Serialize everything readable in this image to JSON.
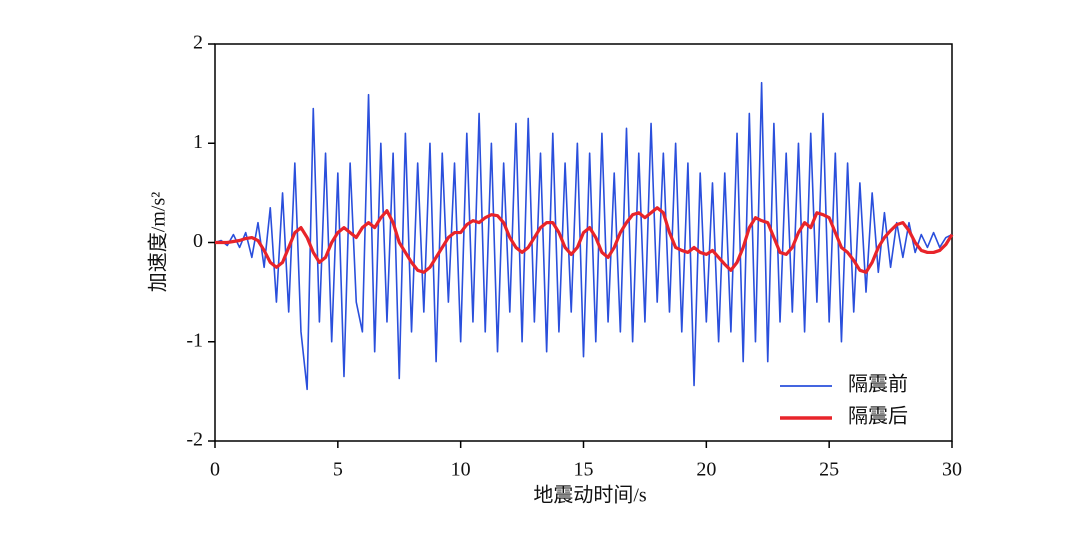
{
  "chart_data": {
    "type": "line",
    "xlabel": "地震动时间/s",
    "ylabel": "加速度/m/s²",
    "xlim": [
      0,
      30
    ],
    "xticks": [
      0,
      5,
      10,
      15,
      20,
      25,
      30
    ],
    "ylim": [
      -2,
      2
    ],
    "yticks": [
      -2,
      -1,
      0,
      1,
      2
    ],
    "legend": "lower right",
    "x": [
      0,
      0.25,
      0.5,
      0.75,
      1,
      1.25,
      1.5,
      1.75,
      2,
      2.25,
      2.5,
      2.75,
      3,
      3.25,
      3.5,
      3.75,
      4,
      4.25,
      4.5,
      4.75,
      5,
      5.25,
      5.5,
      5.75,
      6,
      6.25,
      6.5,
      6.75,
      7,
      7.25,
      7.5,
      7.75,
      8,
      8.25,
      8.5,
      8.75,
      9,
      9.25,
      9.5,
      9.75,
      10,
      10.25,
      10.5,
      10.75,
      11,
      11.25,
      11.5,
      11.75,
      12,
      12.25,
      12.5,
      12.75,
      13,
      13.25,
      13.5,
      13.75,
      14,
      14.25,
      14.5,
      14.75,
      15,
      15.25,
      15.5,
      15.75,
      16,
      16.25,
      16.5,
      16.75,
      17,
      17.25,
      17.5,
      17.75,
      18,
      18.25,
      18.5,
      18.75,
      19,
      19.25,
      19.5,
      19.75,
      20,
      20.25,
      20.5,
      20.75,
      21,
      21.25,
      21.5,
      21.75,
      22,
      22.25,
      22.5,
      22.75,
      23,
      23.25,
      23.5,
      23.75,
      24,
      24.25,
      24.5,
      24.75,
      25,
      25.25,
      25.5,
      25.75,
      26,
      26.25,
      26.5,
      26.75,
      27,
      27.25,
      27.5,
      27.75,
      28,
      28.25,
      28.5,
      28.75,
      29,
      29.25,
      29.5,
      29.75,
      30
    ],
    "series": [
      {
        "name": "隔震前",
        "color": "#2a4fdc",
        "values": [
          0,
          0.02,
          -0.03,
          0.08,
          -0.05,
          0.1,
          -0.15,
          0.2,
          -0.25,
          0.35,
          -0.6,
          0.5,
          -0.7,
          0.8,
          -0.9,
          -1.48,
          1.35,
          -0.8,
          0.9,
          -1.0,
          0.7,
          -1.35,
          0.8,
          -0.6,
          -0.9,
          1.49,
          -1.1,
          1.0,
          -0.8,
          0.9,
          -1.37,
          1.1,
          -0.9,
          0.8,
          -0.7,
          1.0,
          -1.2,
          0.9,
          -0.6,
          0.8,
          -1.0,
          1.1,
          -0.8,
          1.3,
          -0.9,
          1.0,
          -1.1,
          0.8,
          -0.7,
          1.2,
          -1.0,
          1.25,
          -0.8,
          0.9,
          -1.1,
          1.1,
          -0.9,
          0.8,
          -0.7,
          1.0,
          -1.15,
          0.9,
          -1.0,
          1.1,
          -0.8,
          0.7,
          -0.9,
          1.15,
          -1.0,
          0.9,
          -0.8,
          1.2,
          -0.6,
          0.9,
          -0.7,
          1.0,
          -0.9,
          0.8,
          -1.44,
          0.7,
          -0.8,
          0.6,
          -1.0,
          0.7,
          -0.9,
          1.1,
          -1.2,
          1.3,
          -1.0,
          1.61,
          -1.2,
          1.2,
          -0.8,
          0.9,
          -0.7,
          1.0,
          -0.9,
          1.1,
          -0.6,
          1.3,
          -0.8,
          0.9,
          -1.0,
          0.8,
          -0.7,
          0.6,
          -0.5,
          0.5,
          -0.3,
          0.3,
          -0.25,
          0.2,
          -0.15,
          0.2,
          -0.1,
          0.08,
          -0.05,
          0.1,
          -0.05,
          0.05,
          0.08
        ]
      },
      {
        "name": "隔震后",
        "color": "#e8242a",
        "values": [
          0,
          0,
          0,
          0.01,
          0.02,
          0.04,
          0.05,
          0.02,
          -0.08,
          -0.2,
          -0.25,
          -0.2,
          -0.05,
          0.1,
          0.15,
          0.05,
          -0.1,
          -0.2,
          -0.15,
          0,
          0.1,
          0.15,
          0.1,
          0.05,
          0.15,
          0.2,
          0.15,
          0.25,
          0.32,
          0.2,
          0,
          -0.1,
          -0.2,
          -0.28,
          -0.3,
          -0.25,
          -0.15,
          -0.05,
          0.05,
          0.1,
          0.1,
          0.18,
          0.22,
          0.2,
          0.25,
          0.28,
          0.27,
          0.2,
          0.05,
          -0.05,
          -0.1,
          -0.05,
          0.05,
          0.15,
          0.2,
          0.2,
          0.1,
          -0.05,
          -0.12,
          -0.05,
          0.1,
          0.15,
          0.05,
          -0.1,
          -0.15,
          -0.05,
          0.1,
          0.2,
          0.28,
          0.3,
          0.25,
          0.3,
          0.35,
          0.3,
          0.1,
          -0.05,
          -0.08,
          -0.1,
          -0.05,
          -0.1,
          -0.12,
          -0.08,
          -0.15,
          -0.22,
          -0.28,
          -0.2,
          -0.05,
          0.15,
          0.25,
          0.22,
          0.2,
          0.05,
          -0.1,
          -0.12,
          -0.05,
          0.1,
          0.2,
          0.15,
          0.3,
          0.28,
          0.25,
          0.1,
          -0.05,
          -0.1,
          -0.18,
          -0.28,
          -0.3,
          -0.2,
          -0.05,
          0.05,
          0.12,
          0.18,
          0.2,
          0.12,
          0,
          -0.08,
          -0.1,
          -0.1,
          -0.08,
          -0.02,
          0.08
        ]
      }
    ]
  }
}
